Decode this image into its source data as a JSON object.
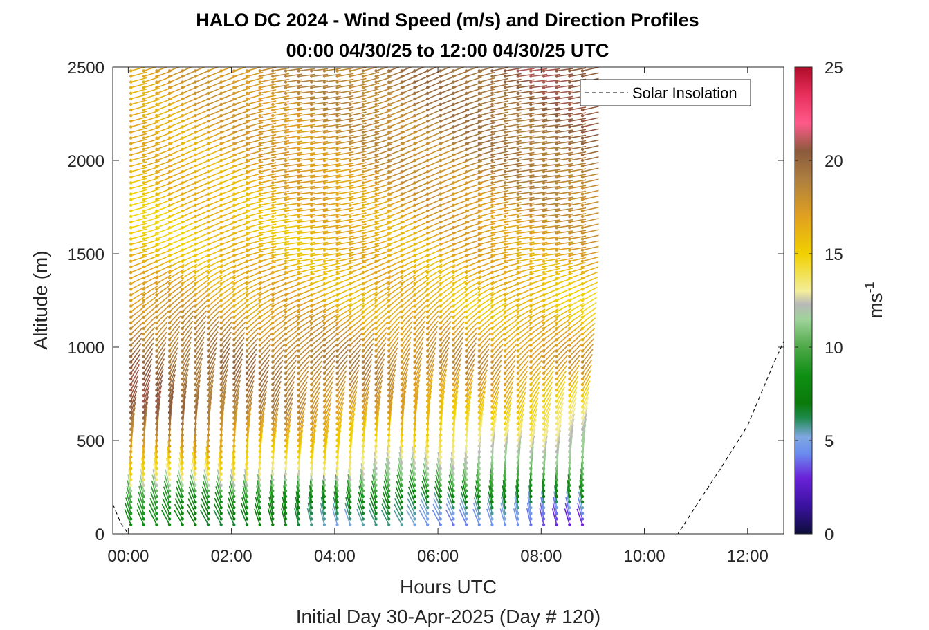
{
  "chart_data": {
    "type": "quiver",
    "title": "HALO DC 2024 - Wind Speed (m/s) and Direction Profiles",
    "subtitle": "00:00 04/30/25 to 12:00 04/30/25  UTC",
    "xlabel": "Hours UTC",
    "xlabel2": "Initial Day 30-Apr-2025 (Day # 120)",
    "ylabel": "Altitude (m)",
    "xlim_hours": [
      -0.3,
      12.7
    ],
    "ylim": [
      0,
      2500
    ],
    "x_ticks": [
      {
        "value": 0,
        "label": "00:00"
      },
      {
        "value": 2,
        "label": "02:00"
      },
      {
        "value": 4,
        "label": "04:00"
      },
      {
        "value": 6,
        "label": "06:00"
      },
      {
        "value": 8,
        "label": "08:00"
      },
      {
        "value": 10,
        "label": "10:00"
      },
      {
        "value": 12,
        "label": "12:00"
      }
    ],
    "y_ticks": [
      {
        "value": 0,
        "label": "0"
      },
      {
        "value": 500,
        "label": "500"
      },
      {
        "value": 1000,
        "label": "1000"
      },
      {
        "value": 1500,
        "label": "1500"
      },
      {
        "value": 2000,
        "label": "2000"
      },
      {
        "value": 2500,
        "label": "2500"
      }
    ],
    "colorbar": {
      "label": "ms",
      "label_exponent": "-1",
      "range": [
        0,
        25
      ],
      "ticks": [
        {
          "value": 0,
          "label": "0"
        },
        {
          "value": 5,
          "label": "5"
        },
        {
          "value": 10,
          "label": "10"
        },
        {
          "value": 15,
          "label": "15"
        },
        {
          "value": 20,
          "label": "20"
        },
        {
          "value": 25,
          "label": "25"
        }
      ],
      "stops": [
        [
          0,
          "#0d0d3a"
        ],
        [
          1.5,
          "#3a12a0"
        ],
        [
          3,
          "#6a22d8"
        ],
        [
          4.3,
          "#6a8cf0"
        ],
        [
          5.2,
          "#7fa7e0"
        ],
        [
          6.2,
          "#1f8a4e"
        ],
        [
          7,
          "#0a7a0a"
        ],
        [
          8.5,
          "#0f8f14"
        ],
        [
          10,
          "#4ea848"
        ],
        [
          11.5,
          "#9fd39a"
        ],
        [
          12.3,
          "#b8b8b8"
        ],
        [
          13,
          "#f3ee9a"
        ],
        [
          15,
          "#f1d000"
        ],
        [
          17,
          "#e0a020"
        ],
        [
          19,
          "#ad7f40"
        ],
        [
          20.5,
          "#8b5a3c"
        ],
        [
          22,
          "#ff5a8a"
        ],
        [
          23.5,
          "#e8305c"
        ],
        [
          25,
          "#b00c2a"
        ]
      ]
    },
    "legend": {
      "location": "top-right",
      "entries": [
        {
          "label": "Solar Insolation",
          "style": "dashed",
          "color": "#000000"
        }
      ]
    },
    "solar_insolation": {
      "x_hours": [
        -0.3,
        -0.15,
        0.0,
        0.3,
        1,
        2,
        3,
        4,
        5,
        6,
        7,
        8,
        9,
        10,
        10.65,
        11,
        11.5,
        12,
        12.5,
        12.7
      ],
      "y_m": [
        160,
        60,
        0,
        0,
        0,
        0,
        0,
        0,
        0,
        0,
        0,
        0,
        0,
        0,
        0,
        150,
        360,
        580,
        910,
        1030
      ]
    },
    "wind_profiles": {
      "time_start_hours": 0.05,
      "time_step_hours": 0.25,
      "time_count": 36,
      "altitude_start_m": 50,
      "altitude_step_m": 30,
      "altitude_count": 82,
      "speed_model": "layered",
      "speed_layers": [
        {
          "altitude_m": 0,
          "speed_early": 7.5,
          "speed_late": 2.5
        },
        {
          "altitude_m": 120,
          "speed_early": 8.5,
          "speed_late": 4.5
        },
        {
          "altitude_m": 200,
          "speed_early": 9.5,
          "speed_late": 7.5
        },
        {
          "altitude_m": 300,
          "speed_early": 14.5,
          "speed_late": 9.5
        },
        {
          "altitude_m": 450,
          "speed_early": 17.5,
          "speed_late": 11.5
        },
        {
          "altitude_m": 650,
          "speed_early": 20.5,
          "speed_late": 14.0
        },
        {
          "altitude_m": 900,
          "speed_early": 20.0,
          "speed_late": 17.5
        },
        {
          "altitude_m": 1200,
          "speed_early": 17.5,
          "speed_late": 15.0
        },
        {
          "altitude_m": 1600,
          "speed_early": 15.0,
          "speed_late": 17.5
        },
        {
          "altitude_m": 2000,
          "speed_early": 16.0,
          "speed_late": 19.5
        },
        {
          "altitude_m": 2500,
          "speed_early": 17.0,
          "speed_late": 21.0
        }
      ],
      "direction_note": "barbs rotate from southerly near surface to westerly aloft"
    }
  }
}
